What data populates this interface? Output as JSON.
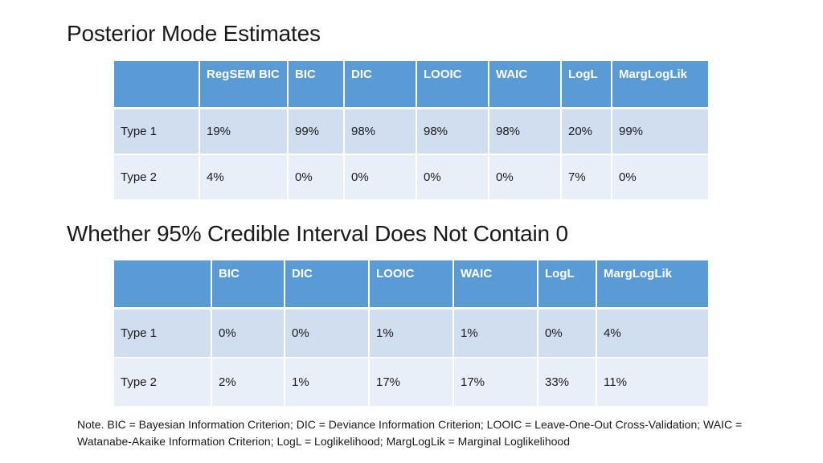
{
  "sections": {
    "posterior": {
      "title": "Posterior Mode Estimates",
      "headers": [
        "",
        "RegSEM BIC",
        "BIC",
        "DIC",
        "LOOIC",
        "WAIC",
        "LogL",
        "MargLogLik"
      ],
      "rows": [
        [
          "Type 1",
          "19%",
          "99%",
          "98%",
          "98%",
          "98%",
          "20%",
          "99%"
        ],
        [
          "Type 2",
          "4%",
          "0%",
          "0%",
          "0%",
          "0%",
          "7%",
          "0%"
        ]
      ]
    },
    "credible": {
      "title": "Whether 95% Credible Interval Does Not Contain 0",
      "headers": [
        "",
        "BIC",
        "DIC",
        "LOOIC",
        "WAIC",
        "LogL",
        "MargLogLik"
      ],
      "rows": [
        [
          "Type 1",
          "0%",
          "0%",
          "1%",
          "1%",
          "0%",
          "4%"
        ],
        [
          "Type 2",
          "2%",
          "1%",
          "17%",
          "17%",
          "33%",
          "11%"
        ]
      ]
    }
  },
  "note": "Note. BIC = Bayesian Information Criterion; DIC = Deviance Information Criterion; LOOIC = Leave-One-Out Cross-Validation; WAIC = Watanabe-Akaike Information Criterion; LogL = Loglikelihood; MargLogLik = Marginal Loglikelihood",
  "colors": {
    "header_fill": "#5b9bd5",
    "row_odd_fill": "#d0def0",
    "row_even_fill": "#e9eff8"
  }
}
